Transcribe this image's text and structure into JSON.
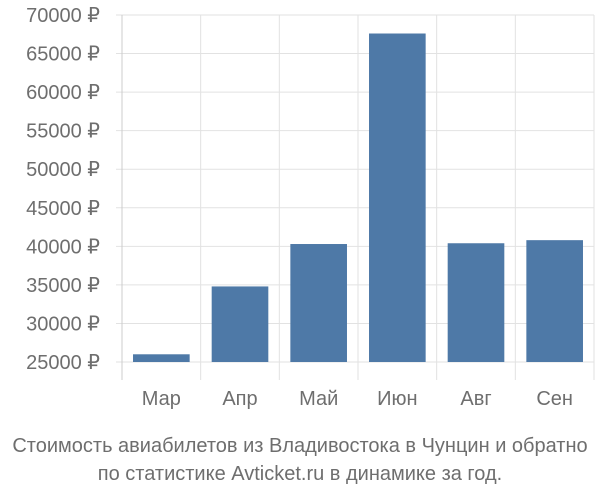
{
  "chart_data": {
    "type": "bar",
    "categories": [
      "Мар",
      "Апр",
      "Май",
      "Июн",
      "Авг",
      "Сен"
    ],
    "values": [
      26000,
      34800,
      40300,
      67600,
      40400,
      40800
    ],
    "ylim": [
      25000,
      70000
    ],
    "y_ticks": [
      70000,
      65000,
      60000,
      55000,
      50000,
      45000,
      40000,
      35000,
      30000,
      25000
    ],
    "y_tick_labels": [
      "70000 ₽",
      "65000 ₽",
      "60000 ₽",
      "55000 ₽",
      "50000 ₽",
      "45000 ₽",
      "40000 ₽",
      "35000 ₽",
      "30000 ₽",
      "25000 ₽"
    ],
    "grid": true,
    "bar_color": "#4e79a7",
    "caption_line1": "Стоимость авиабилетов из Владивостока в Чунцин и обратно",
    "caption_line2": "по статистике Avticket.ru в динамике за год."
  }
}
